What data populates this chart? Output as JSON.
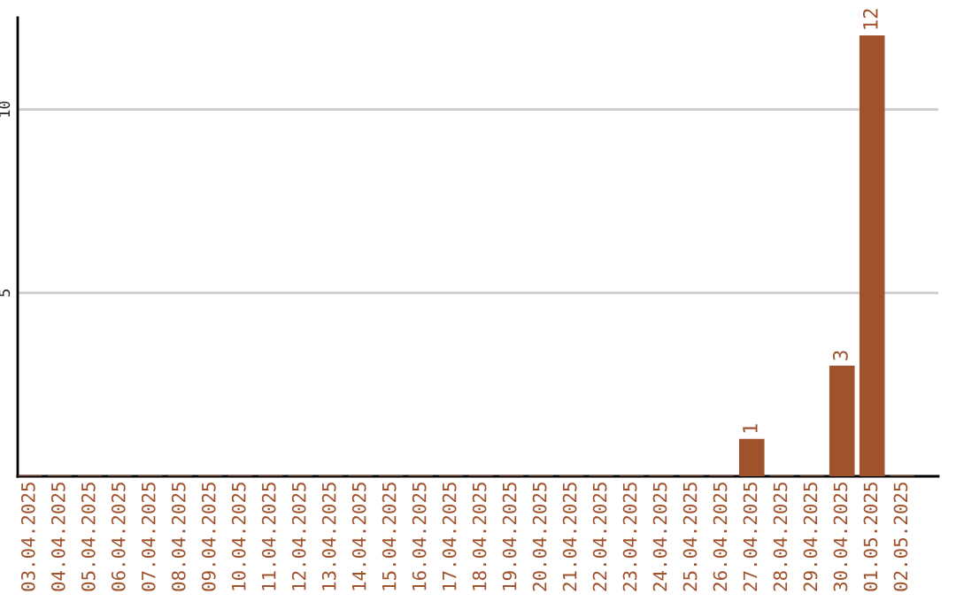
{
  "chart_data": {
    "type": "bar",
    "categories": [
      "03.04.2025",
      "04.04.2025",
      "05.04.2025",
      "06.04.2025",
      "07.04.2025",
      "08.04.2025",
      "09.04.2025",
      "10.04.2025",
      "11.04.2025",
      "12.04.2025",
      "13.04.2025",
      "14.04.2025",
      "15.04.2025",
      "16.04.2025",
      "17.04.2025",
      "18.04.2025",
      "19.04.2025",
      "20.04.2025",
      "21.04.2025",
      "22.04.2025",
      "23.04.2025",
      "24.04.2025",
      "25.04.2025",
      "26.04.2025",
      "27.04.2025",
      "28.04.2025",
      "29.04.2025",
      "30.04.2025",
      "01.05.2025",
      "02.05.2025"
    ],
    "values": [
      0,
      0,
      0,
      0,
      0,
      0,
      0,
      0,
      0,
      0,
      0,
      0,
      0,
      0,
      0,
      0,
      0,
      0,
      0,
      0,
      0,
      0,
      0,
      0,
      1,
      0,
      0,
      3,
      12,
      0
    ],
    "value_labels": [
      null,
      null,
      null,
      null,
      null,
      null,
      null,
      null,
      null,
      null,
      null,
      null,
      null,
      null,
      null,
      null,
      null,
      null,
      null,
      null,
      null,
      null,
      null,
      null,
      "1",
      null,
      null,
      "3",
      "12",
      null
    ],
    "color": "#a0522d",
    "ylim": [
      0,
      12.5
    ],
    "yticks": [
      5,
      10
    ],
    "grid": "y"
  }
}
